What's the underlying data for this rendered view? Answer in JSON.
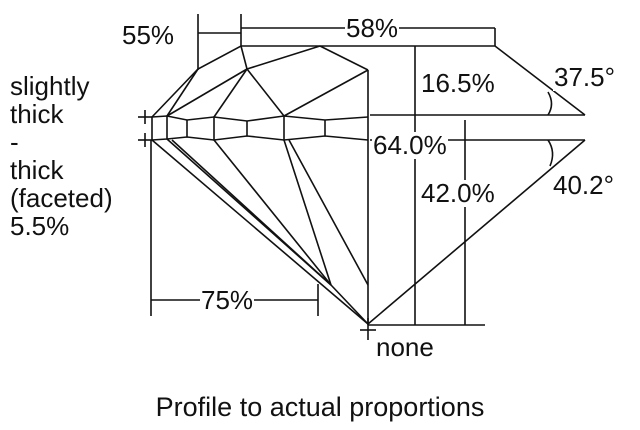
{
  "labels": {
    "crown_facet_pct": "55%",
    "table_pct": "58%",
    "girdle_lines": [
      "slightly",
      "thick",
      "-",
      "thick",
      "(faceted)",
      "5.5%"
    ],
    "crown_height_pct": "16.5%",
    "crown_angle": "37.5°",
    "total_depth_pct": "64.0%",
    "pavilion_depth_pct": "42.0%",
    "pavilion_angle": "40.2°",
    "lower_half_pct": "75%",
    "culet": "none"
  },
  "caption": "Profile to actual proportions",
  "colors": {
    "line": "#111111",
    "background": "#ffffff"
  }
}
